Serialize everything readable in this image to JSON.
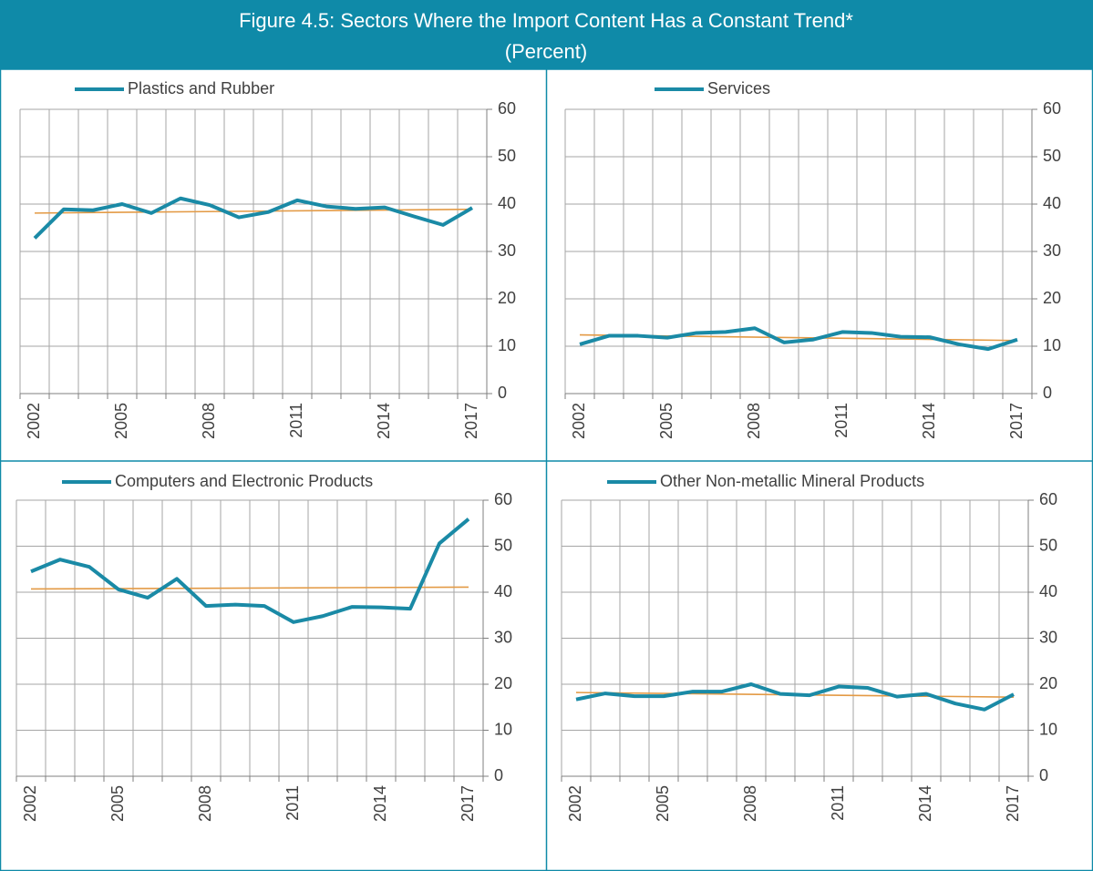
{
  "title": "Figure 4.5: Sectors Where the Import Content Has a Constant Trend*",
  "subtitle": "(Percent)",
  "chart_data": [
    {
      "type": "line",
      "categories": [
        "2002",
        null,
        null,
        "2005",
        null,
        null,
        "2008",
        null,
        null,
        "2011",
        null,
        null,
        "2014",
        null,
        null,
        "2017"
      ],
      "series": [
        {
          "name": "Plastics and Rubber",
          "color": "#1a8aa6",
          "values": [
            32.8,
            38.9,
            38.7,
            40.0,
            38.1,
            41.2,
            39.8,
            37.2,
            38.3,
            40.8,
            39.5,
            39.0,
            39.3,
            37.4,
            35.6,
            39.2
          ]
        }
      ],
      "trendline": {
        "color": "#e39a45",
        "values": [
          38.1,
          38.9
        ]
      },
      "ylim": [
        0,
        60
      ],
      "yticks": [
        0,
        10,
        20,
        30,
        40,
        50,
        60
      ],
      "grid": true,
      "y_axis_side": "right"
    },
    {
      "type": "line",
      "categories": [
        "2002",
        null,
        null,
        "2005",
        null,
        null,
        "2008",
        null,
        null,
        "2011",
        null,
        null,
        "2014",
        null,
        null,
        "2017"
      ],
      "series": [
        {
          "name": "Services",
          "color": "#1a8aa6",
          "values": [
            10.4,
            12.2,
            12.2,
            11.8,
            12.8,
            13.0,
            13.8,
            10.8,
            11.4,
            13.0,
            12.8,
            12.0,
            11.9,
            10.4,
            9.4,
            11.4
          ]
        }
      ],
      "trendline": {
        "color": "#e39a45",
        "values": [
          12.4,
          11.2
        ]
      },
      "ylim": [
        0,
        60
      ],
      "yticks": [
        0,
        10,
        20,
        30,
        40,
        50,
        60
      ],
      "grid": true,
      "y_axis_side": "right"
    },
    {
      "type": "line",
      "categories": [
        "2002",
        null,
        null,
        "2005",
        null,
        null,
        "2008",
        null,
        null,
        "2011",
        null,
        null,
        "2014",
        null,
        null,
        "2017"
      ],
      "series": [
        {
          "name": "Computers and Electronic Products",
          "color": "#1a8aa6",
          "values": [
            44.5,
            47.1,
            45.5,
            40.6,
            38.8,
            42.9,
            37.0,
            37.3,
            37.0,
            33.5,
            34.8,
            36.8,
            36.7,
            36.4,
            50.6,
            55.9
          ]
        }
      ],
      "trendline": {
        "color": "#e39a45",
        "values": [
          40.7,
          41.1
        ]
      },
      "ylim": [
        0,
        60
      ],
      "yticks": [
        0,
        10,
        20,
        30,
        40,
        50,
        60
      ],
      "grid": true,
      "y_axis_side": "right"
    },
    {
      "type": "line",
      "categories": [
        "2002",
        null,
        null,
        "2005",
        null,
        null,
        "2008",
        null,
        null,
        "2011",
        null,
        null,
        "2014",
        null,
        null,
        "2017"
      ],
      "series": [
        {
          "name": "Other Non-metallic Mineral Products",
          "color": "#1a8aa6",
          "values": [
            16.7,
            18.0,
            17.4,
            17.4,
            18.4,
            18.4,
            20.0,
            17.9,
            17.6,
            19.5,
            19.2,
            17.3,
            17.9,
            15.8,
            14.5,
            17.8
          ]
        }
      ],
      "trendline": {
        "color": "#e39a45",
        "values": [
          18.2,
          17.2
        ]
      },
      "ylim": [
        0,
        60
      ],
      "yticks": [
        0,
        10,
        20,
        30,
        40,
        50,
        60
      ],
      "grid": true,
      "y_axis_side": "right"
    }
  ]
}
